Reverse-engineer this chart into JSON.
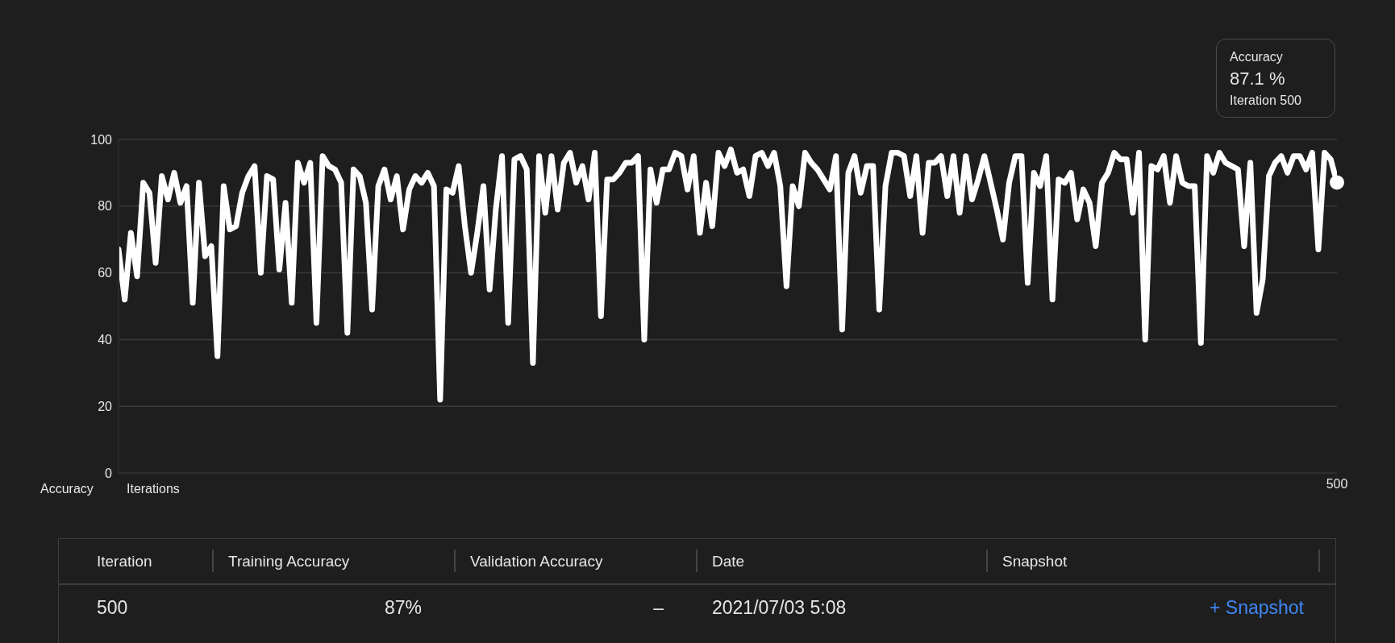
{
  "chart_data": {
    "type": "line",
    "xlabel": "Iterations",
    "ylabel": "Accuracy",
    "categories": [
      null,
      null,
      null,
      null,
      null,
      null,
      null,
      null,
      null,
      null,
      null,
      null,
      null,
      null,
      null,
      null,
      null,
      null,
      null,
      null,
      null,
      null,
      null,
      null,
      null,
      null,
      null,
      null,
      null,
      null,
      null,
      null,
      null,
      null,
      null,
      null,
      null,
      null,
      null,
      null,
      null,
      null,
      null,
      null,
      null,
      null,
      null,
      null,
      null,
      null,
      null,
      null,
      null,
      null,
      null,
      null,
      null,
      null,
      null,
      null,
      null,
      null,
      null,
      null,
      null,
      null,
      null,
      null,
      null,
      null,
      null,
      null,
      null,
      null,
      null,
      null,
      null,
      null,
      null,
      null,
      null,
      null,
      null,
      null,
      null,
      null,
      null,
      null,
      null,
      null,
      null,
      null,
      null,
      null,
      null,
      null,
      null,
      null,
      null,
      null,
      null,
      null,
      null,
      null,
      null,
      null,
      null,
      null,
      null,
      null,
      null,
      null,
      null,
      null,
      null,
      null,
      null,
      null,
      null,
      null,
      null,
      null,
      null,
      null,
      null,
      null,
      null,
      null,
      null,
      null,
      null,
      null,
      null,
      null,
      null,
      null,
      null,
      null,
      null,
      null,
      null,
      null,
      null,
      null,
      null,
      null,
      null,
      null,
      null,
      null,
      null,
      null,
      null,
      null,
      null,
      null,
      null,
      null,
      null,
      null,
      null,
      null,
      null,
      null,
      null,
      null,
      null,
      null,
      null,
      null,
      null,
      null,
      null,
      null,
      null,
      null,
      null,
      null,
      null,
      null,
      null,
      null,
      null,
      null,
      null,
      null,
      null,
      null,
      null,
      null,
      null,
      null,
      null,
      null,
      null,
      null,
      null,
      "500"
    ],
    "series": [
      {
        "color": "#ffffff",
        "values": [
          67,
          52,
          72,
          59,
          87,
          84,
          63,
          89,
          82,
          90,
          81,
          86,
          51,
          87,
          65,
          68,
          35,
          86,
          73,
          74,
          84,
          89,
          92,
          60,
          89,
          88,
          61,
          81,
          51,
          93,
          87,
          93,
          45,
          95,
          92,
          91,
          87,
          42,
          91,
          89,
          81,
          49,
          86,
          91,
          82,
          89,
          73,
          85,
          89,
          87,
          90,
          86,
          22,
          85,
          84,
          92,
          74,
          60,
          72,
          86,
          55,
          79,
          95,
          45,
          94,
          95,
          91,
          33,
          95,
          78,
          95,
          79,
          93,
          96,
          87,
          92,
          82,
          96,
          47,
          88,
          88,
          90,
          93,
          93,
          95,
          40,
          91,
          81,
          91,
          91,
          96,
          95,
          85,
          95,
          72,
          87,
          74,
          96,
          92,
          97,
          90,
          91,
          83,
          95,
          96,
          92,
          96,
          86,
          56,
          86,
          80,
          96,
          93,
          91,
          88,
          85,
          95,
          43,
          90,
          95,
          84,
          92,
          92,
          49,
          86,
          96,
          96,
          95,
          83,
          95,
          72,
          93,
          93,
          95,
          83,
          95,
          78,
          95,
          82,
          88,
          95,
          87,
          79,
          70,
          87,
          95,
          95,
          57,
          90,
          86,
          95,
          52,
          88,
          87,
          90,
          76,
          85,
          81,
          68,
          87,
          90,
          96,
          94,
          94,
          78,
          96,
          40,
          92,
          91,
          95,
          81,
          95,
          87,
          86,
          86,
          39,
          95,
          90,
          96,
          93,
          92,
          91,
          68,
          93,
          48,
          58,
          89,
          93,
          95,
          90,
          95,
          95,
          91,
          96,
          67,
          96,
          94,
          87.1
        ]
      }
    ],
    "ylim": [
      0,
      100
    ],
    "yticks": [
      0,
      20,
      40,
      60,
      80,
      100
    ],
    "grid": "y",
    "legend": false,
    "marker": "none",
    "line_style": "solid",
    "annotations": [
      "Accuracy\n87.1 %\nIteration 500",
      "Iteration",
      "Training Accuracy",
      "Validation Accuracy",
      "Date",
      "Snapshot",
      "500",
      "87%",
      "–",
      "2021/07/03 5:08",
      "+ Snapshot"
    ]
  }
}
